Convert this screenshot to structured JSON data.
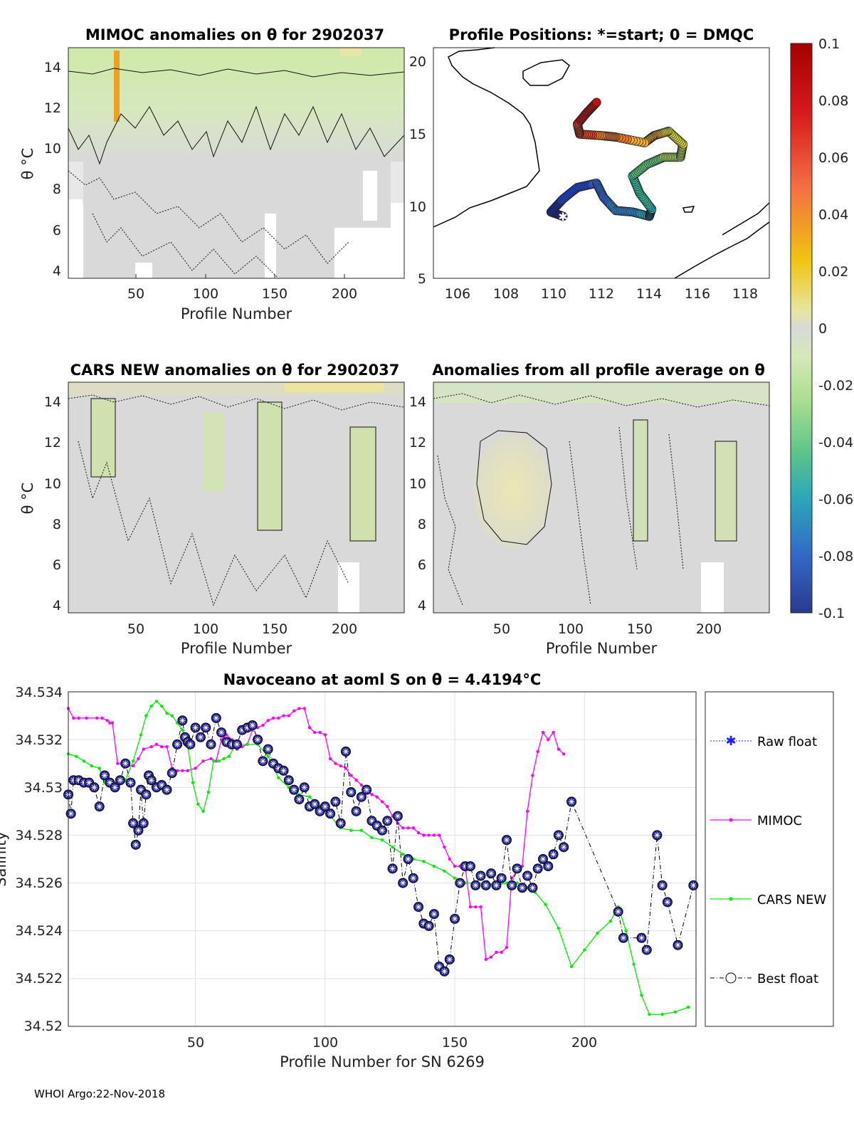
{
  "colorbar": {
    "ticks": [
      "0.1",
      "0.08",
      "0.06",
      "0.04",
      "0.02",
      "0",
      "-0.02",
      "-0.04",
      "-0.06",
      "-0.08",
      "-0.1"
    ],
    "colors": [
      "#b30000",
      "#d7191c",
      "#f46d43",
      "#fdae61",
      "#e6d800",
      "#d9d9d9",
      "#c8e6a0",
      "#7fcf7f",
      "#2fb3a0",
      "#3b70c4",
      "#1d2f8c"
    ]
  },
  "panel_mimoc": {
    "title": "MIMOC anomalies on θ  for 2902037",
    "xlabel": "Profile Number",
    "ylabel": "θ °C",
    "xticks": [
      "50",
      "100",
      "150",
      "200"
    ],
    "yticks": [
      "4",
      "6",
      "8",
      "10",
      "12",
      "14"
    ]
  },
  "panel_positions": {
    "title": "Profile Positions: *=start; 0 = DMQC",
    "xticks": [
      "106",
      "108",
      "110",
      "112",
      "114",
      "116",
      "118"
    ],
    "yticks": [
      "5",
      "10",
      "15",
      "20"
    ]
  },
  "panel_cars": {
    "title": "CARS NEW anomalies on θ for 2902037",
    "xlabel": "Profile Number",
    "ylabel": "θ °C",
    "xticks": [
      "50",
      "100",
      "150",
      "200"
    ],
    "yticks": [
      "4",
      "6",
      "8",
      "10",
      "12",
      "14"
    ]
  },
  "panel_avg": {
    "title": "Anomalies from all profile average on θ",
    "xlabel": "Profile Number",
    "xticks": [
      "50",
      "100",
      "150",
      "200"
    ],
    "yticks": [
      "4",
      "6",
      "8",
      "10",
      "12",
      "14"
    ]
  },
  "bottom_chart": {
    "title": "Navoceano at aoml S on θ = 4.4194°C",
    "xlabel": "Profile Number for SN 6269",
    "ylabel": "Salinity",
    "xticks": [
      "50",
      "100",
      "150",
      "200"
    ],
    "yticks": [
      "34.534",
      "34.532",
      "34.53",
      "34.528",
      "34.526",
      "34.524",
      "34.522",
      "34.52"
    ],
    "legend": [
      "Raw float",
      "MIMOC",
      "CARS NEW",
      "Best float"
    ]
  },
  "footer": "WHOI Argo:22-Nov-2018",
  "chart_data": [
    {
      "type": "heatmap",
      "title": "MIMOC anomalies on θ  for 2902037",
      "xlabel": "Profile Number",
      "ylabel": "θ °C",
      "xlim": [
        1,
        243
      ],
      "ylim": [
        3.6,
        15
      ],
      "color_range": [
        -0.1,
        0.1
      ],
      "description_values": {
        "upper_layer_anomaly": -0.015,
        "lower_layer_anomaly": 0.0,
        "spike_profile": 37,
        "spike_anomaly": 0.05
      }
    },
    {
      "type": "scatter",
      "title": "Profile Positions: *=start; 0 = DMQC",
      "xlim": [
        105,
        119
      ],
      "ylim": [
        5,
        21
      ],
      "track_lon": [
        110.4,
        109.9,
        110.4,
        111.0,
        111.8,
        112.1,
        112.6,
        113.3,
        114.0,
        114.1,
        113.6,
        113.3,
        113.9,
        114.6,
        115.3,
        115.4,
        114.8,
        114.2,
        113.8,
        112.6,
        112.0,
        111.1,
        111.0,
        111.4,
        111.8
      ],
      "track_lat": [
        9.3,
        9.6,
        10.5,
        11.3,
        11.6,
        10.6,
        9.7,
        9.6,
        9.3,
        9.8,
        10.9,
        12.1,
        12.9,
        13.4,
        13.4,
        14.3,
        15.2,
        14.9,
        14.4,
        14.8,
        14.9,
        15.0,
        15.7,
        16.5,
        17.2
      ],
      "start": [
        110.4,
        9.3
      ]
    },
    {
      "type": "heatmap",
      "title": "CARS NEW anomalies on θ for 2902037",
      "xlabel": "Profile Number",
      "ylabel": "θ °C",
      "xlim": [
        1,
        243
      ],
      "ylim": [
        3.6,
        15
      ],
      "color_range": [
        -0.1,
        0.1
      ]
    },
    {
      "type": "heatmap",
      "title": "Anomalies from all profile average on θ",
      "xlabel": "Profile Number",
      "xlim": [
        1,
        243
      ],
      "ylim": [
        3.6,
        15
      ],
      "color_range": [
        -0.1,
        0.1
      ]
    },
    {
      "type": "line",
      "title": "Navoceano at aoml S on θ = 4.4194°C",
      "xlabel": "Profile Number for SN 6269",
      "ylabel": "Salinity",
      "xlim": [
        1,
        243
      ],
      "ylim": [
        34.52,
        34.534
      ],
      "series": [
        {
          "name": "MIMOC",
          "color": "#ff00ff",
          "x": [
            1,
            3,
            5,
            8,
            12,
            14,
            16,
            17,
            18,
            20,
            22,
            24,
            26,
            28,
            30,
            33,
            35,
            37,
            39,
            41,
            43,
            45,
            47,
            50,
            53,
            56,
            58,
            60,
            62,
            64,
            66,
            68,
            70,
            72,
            74,
            76,
            78,
            80,
            82,
            84,
            86,
            88,
            90,
            92,
            94,
            96,
            98,
            100,
            102,
            104,
            106,
            108,
            110,
            112,
            114,
            116,
            118,
            120,
            122,
            124,
            126,
            128,
            130,
            132,
            134,
            136,
            138,
            140,
            142,
            144,
            146,
            148,
            150,
            152,
            154,
            156,
            158,
            160,
            162,
            164,
            166,
            168,
            170,
            172,
            174,
            176,
            178,
            180,
            182,
            184,
            186,
            188,
            190,
            192
          ],
          "y": [
            34.5333,
            34.5329,
            34.5329,
            34.5329,
            34.5329,
            34.5329,
            34.5328,
            34.5327,
            34.5327,
            34.531,
            34.531,
            34.5309,
            34.5309,
            34.5312,
            34.5316,
            34.5317,
            34.5318,
            34.5317,
            34.5317,
            34.5308,
            34.5307,
            34.5307,
            34.5307,
            34.5308,
            34.5311,
            34.5312,
            34.5311,
            34.532,
            34.5322,
            34.532,
            34.5316,
            34.5317,
            34.5318,
            34.5324,
            34.5325,
            34.5326,
            34.5328,
            34.5329,
            34.5329,
            34.533,
            34.533,
            34.5332,
            34.5333,
            34.5333,
            34.5325,
            34.5323,
            34.5323,
            34.5322,
            34.5312,
            34.531,
            34.5309,
            34.5308,
            34.5305,
            34.5303,
            34.5301,
            34.5299,
            34.5297,
            34.5296,
            34.5294,
            34.5292,
            34.5288,
            34.5285,
            34.5283,
            34.5283,
            34.5283,
            34.5281,
            34.528,
            34.528,
            34.528,
            34.528,
            34.5275,
            34.527,
            34.5267,
            34.5267,
            34.5267,
            34.525,
            34.525,
            34.525,
            34.5228,
            34.5229,
            34.5231,
            34.5231,
            34.5233,
            34.5262,
            34.5265,
            34.5267,
            34.529,
            34.5305,
            34.5315,
            34.5323,
            34.532,
            34.5323,
            34.5316,
            34.5314
          ]
        },
        {
          "name": "CARS NEW",
          "color": "#00ee00",
          "x": [
            1,
            4,
            7,
            10,
            13,
            15,
            17,
            20,
            23,
            26,
            29,
            31,
            33,
            35,
            37,
            39,
            41,
            43,
            45,
            47,
            49,
            51,
            53,
            55,
            57,
            59,
            61,
            63,
            65,
            67,
            70,
            74,
            78,
            82,
            86,
            90,
            94,
            98,
            102,
            106,
            110,
            114,
            118,
            122,
            126,
            130,
            134,
            138,
            142,
            146,
            150,
            154,
            158,
            162,
            166,
            170,
            174,
            178,
            181,
            185,
            190,
            195,
            200,
            205,
            210,
            213,
            216,
            219,
            222,
            225,
            230,
            235,
            240
          ],
          "y": [
            34.5314,
            34.5313,
            34.5311,
            34.5309,
            34.5308,
            34.5302,
            34.5301,
            34.53,
            34.5303,
            34.5311,
            34.5322,
            34.533,
            34.5334,
            34.5336,
            34.5334,
            34.5331,
            34.533,
            34.5327,
            34.5324,
            34.5318,
            34.5302,
            34.5293,
            34.529,
            34.5298,
            34.5311,
            34.5311,
            34.5312,
            34.5313,
            34.5317,
            34.5318,
            34.5318,
            34.5318,
            34.5313,
            34.5304,
            34.53,
            34.5297,
            34.5296,
            34.5292,
            34.5288,
            34.5283,
            34.5282,
            34.5282,
            34.5279,
            34.5278,
            34.5275,
            34.5272,
            34.527,
            34.5269,
            34.5267,
            34.5265,
            34.5262,
            34.526,
            34.526,
            34.526,
            34.5259,
            34.526,
            34.526,
            34.5258,
            34.5256,
            34.5251,
            34.5241,
            34.5225,
            34.5232,
            34.5239,
            34.5244,
            34.525,
            34.524,
            34.5226,
            34.5213,
            34.5205,
            34.5205,
            34.5206,
            34.5208
          ]
        },
        {
          "name": "Best float",
          "color": "#000000",
          "x": [
            1,
            2,
            3,
            5,
            7,
            9,
            11,
            13,
            15,
            17,
            19,
            21,
            23,
            25,
            26,
            27,
            28,
            29,
            30,
            31,
            32,
            33,
            35,
            37,
            39,
            41,
            43,
            45,
            46,
            47,
            48,
            50,
            52,
            54,
            56,
            58,
            60,
            62,
            64,
            66,
            68,
            70,
            72,
            74,
            76,
            78,
            80,
            82,
            84,
            86,
            88,
            90,
            92,
            94,
            96,
            98,
            100,
            102,
            104,
            106,
            108,
            110,
            112,
            114,
            116,
            118,
            120,
            122,
            124,
            126,
            128,
            130,
            132,
            134,
            136,
            138,
            140,
            142,
            144,
            146,
            148,
            150,
            152,
            154,
            156,
            158,
            160,
            162,
            164,
            166,
            168,
            170,
            172,
            174,
            176,
            178,
            180,
            182,
            184,
            186,
            188,
            190,
            192,
            195,
            213,
            215,
            222,
            224,
            228,
            230,
            232,
            236,
            242
          ],
          "y": [
            34.5297,
            34.5289,
            34.5303,
            34.5303,
            34.5302,
            34.5302,
            34.53,
            34.5292,
            34.5305,
            34.5302,
            34.53,
            34.5303,
            34.531,
            34.5302,
            34.5285,
            34.5276,
            34.5282,
            34.5299,
            34.5285,
            34.5297,
            34.5305,
            34.5303,
            34.53,
            34.5301,
            34.5299,
            34.5306,
            34.5318,
            34.5328,
            34.5321,
            34.5319,
            34.5318,
            34.5325,
            34.5321,
            34.5325,
            34.5318,
            34.5329,
            34.5323,
            34.5319,
            34.5318,
            34.5318,
            34.5324,
            34.5325,
            34.5326,
            34.532,
            34.5311,
            34.5316,
            34.531,
            34.5308,
            34.5307,
            34.5303,
            34.5299,
            34.5295,
            34.53,
            34.5292,
            34.5293,
            34.529,
            34.5292,
            34.5289,
            34.5294,
            34.5285,
            34.5315,
            34.5298,
            34.529,
            34.5296,
            34.5299,
            34.5286,
            34.5284,
            34.5282,
            34.5286,
            34.5266,
            34.5288,
            34.526,
            34.527,
            34.5262,
            34.525,
            34.5243,
            34.5242,
            34.5247,
            34.5225,
            34.5223,
            34.5228,
            34.5245,
            34.526,
            34.5267,
            34.5267,
            34.5259,
            34.5263,
            34.5259,
            34.5264,
            34.5259,
            34.5262,
            34.5278,
            34.5259,
            34.5266,
            34.5258,
            34.5263,
            34.5258,
            34.5266,
            34.527,
            34.5267,
            34.5272,
            34.528,
            34.5275,
            34.5294,
            34.5248,
            34.5237,
            34.5237,
            34.5232,
            34.528,
            34.5259,
            34.5252,
            34.5234,
            34.5259
          ]
        }
      ]
    }
  ]
}
